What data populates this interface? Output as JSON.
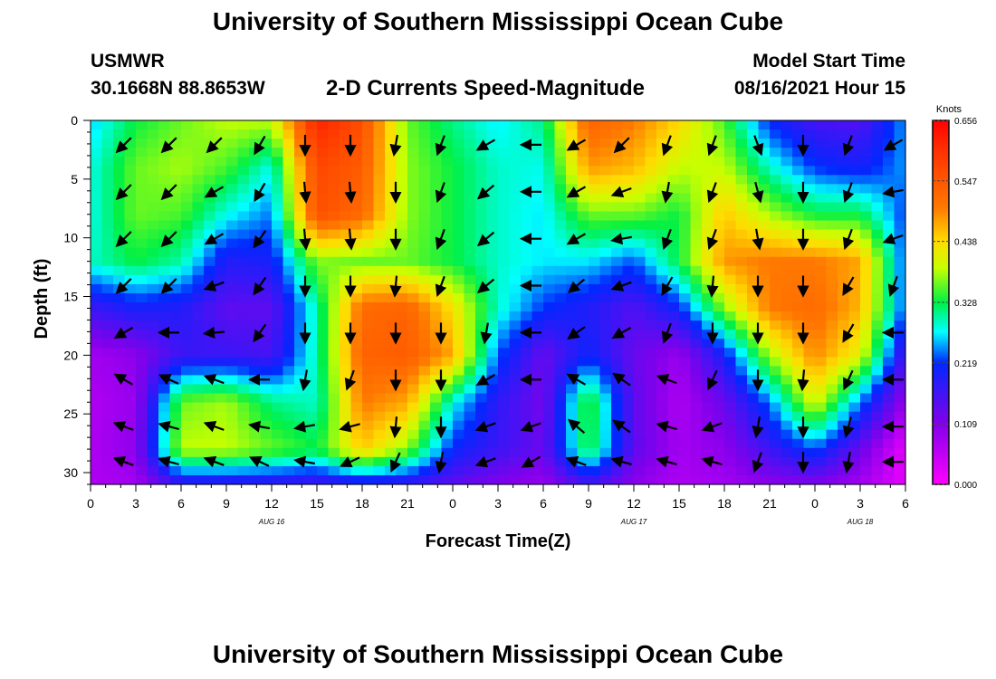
{
  "header": {
    "title": "University of Southern Mississippi Ocean Cube",
    "station": "USMWR",
    "coordinates": "30.1668N  88.8653W",
    "subtitle": "2-D Currents Speed-Magnitude",
    "model_start_label": "Model Start Time",
    "model_start_value": "08/16/2021 Hour 15"
  },
  "footer": {
    "title": "University of Southern Mississippi Ocean Cube"
  },
  "chart_data": {
    "type": "heatmap",
    "title": "2-D Currents Speed-Magnitude",
    "xlabel": "Forecast Time(Z)",
    "ylabel": "Depth (ft)",
    "x_tick_labels": [
      "0",
      "3",
      "6",
      "9",
      "12",
      "15",
      "18",
      "21",
      "0",
      "3",
      "6",
      "9",
      "12",
      "15",
      "18",
      "21",
      "0",
      "3",
      "6"
    ],
    "x_hours": [
      0,
      3,
      6,
      9,
      12,
      15,
      18,
      21,
      24,
      27,
      30,
      33,
      36,
      39,
      42,
      45,
      48,
      51,
      54
    ],
    "date_labels": [
      {
        "label": "AUG  16",
        "hour": 12
      },
      {
        "label": "AUG  17",
        "hour": 36
      },
      {
        "label": "AUG  18",
        "hour": 51
      }
    ],
    "y_ticks": [
      0,
      5,
      10,
      15,
      20,
      25,
      30
    ],
    "ylim": [
      0,
      31
    ],
    "xlim": [
      0,
      54
    ],
    "colorbar": {
      "title": "Knots",
      "tick_labels": [
        "0.656",
        "0.547",
        "0.438",
        "0.328",
        "0.219",
        "0.109",
        "0.000"
      ],
      "tick_values": [
        0.656,
        0.547,
        0.438,
        0.328,
        0.219,
        0.109,
        0.0
      ],
      "range": [
        0,
        0.656
      ]
    },
    "depths": [
      0,
      4,
      8,
      12,
      16,
      20,
      24,
      28,
      31
    ],
    "grid_hours": [
      0,
      3,
      6,
      9,
      12,
      15,
      18,
      21,
      24,
      27,
      30,
      33,
      36,
      39,
      42,
      45,
      48,
      51,
      54
    ],
    "speed_grid": [
      [
        0.26,
        0.33,
        0.36,
        0.39,
        0.39,
        0.62,
        0.56,
        0.36,
        0.31,
        0.27,
        0.31,
        0.53,
        0.5,
        0.44,
        0.35,
        0.21,
        0.16,
        0.15,
        0.25
      ],
      [
        0.28,
        0.36,
        0.38,
        0.35,
        0.28,
        0.57,
        0.54,
        0.37,
        0.33,
        0.29,
        0.28,
        0.48,
        0.46,
        0.39,
        0.39,
        0.29,
        0.22,
        0.2,
        0.25
      ],
      [
        0.28,
        0.36,
        0.35,
        0.28,
        0.24,
        0.56,
        0.52,
        0.37,
        0.33,
        0.29,
        0.27,
        0.36,
        0.36,
        0.33,
        0.45,
        0.38,
        0.33,
        0.33,
        0.22
      ],
      [
        0.29,
        0.33,
        0.3,
        0.19,
        0.2,
        0.37,
        0.36,
        0.36,
        0.33,
        0.29,
        0.27,
        0.27,
        0.23,
        0.33,
        0.48,
        0.5,
        0.5,
        0.47,
        0.22
      ],
      [
        0.17,
        0.2,
        0.19,
        0.14,
        0.14,
        0.3,
        0.52,
        0.53,
        0.43,
        0.29,
        0.22,
        0.19,
        0.15,
        0.21,
        0.37,
        0.5,
        0.52,
        0.46,
        0.22
      ],
      [
        0.08,
        0.1,
        0.17,
        0.17,
        0.16,
        0.3,
        0.53,
        0.54,
        0.47,
        0.23,
        0.13,
        0.21,
        0.13,
        0.09,
        0.2,
        0.38,
        0.49,
        0.41,
        0.15
      ],
      [
        0.07,
        0.09,
        0.36,
        0.38,
        0.31,
        0.29,
        0.5,
        0.47,
        0.28,
        0.18,
        0.12,
        0.35,
        0.14,
        0.07,
        0.13,
        0.24,
        0.41,
        0.24,
        0.09
      ],
      [
        0.07,
        0.1,
        0.39,
        0.39,
        0.36,
        0.33,
        0.45,
        0.37,
        0.21,
        0.17,
        0.13,
        0.34,
        0.14,
        0.08,
        0.1,
        0.17,
        0.23,
        0.13,
        0.02
      ],
      [
        0.07,
        0.08,
        0.17,
        0.17,
        0.17,
        0.16,
        0.18,
        0.17,
        0.14,
        0.11,
        0.09,
        0.16,
        0.1,
        0.07,
        0.08,
        0.1,
        0.11,
        0.08,
        0.02
      ]
    ],
    "vector_depths": [
      2,
      6,
      10,
      14,
      18,
      22,
      26,
      29
    ],
    "vector_hours": [
      3,
      6,
      9,
      12,
      15,
      18,
      21,
      24,
      27,
      30,
      33,
      36,
      39,
      42,
      45,
      48,
      51,
      54
    ],
    "vector_directions_deg": [
      [
        225,
        225,
        225,
        210,
        180,
        180,
        190,
        200,
        240,
        270,
        240,
        225,
        200,
        200,
        160,
        180,
        200,
        240
      ],
      [
        225,
        225,
        240,
        210,
        175,
        175,
        180,
        200,
        230,
        270,
        240,
        250,
        190,
        200,
        165,
        180,
        200,
        260
      ],
      [
        225,
        225,
        240,
        215,
        175,
        175,
        180,
        200,
        230,
        270,
        240,
        260,
        200,
        200,
        170,
        180,
        200,
        250
      ],
      [
        225,
        225,
        250,
        215,
        180,
        180,
        185,
        200,
        230,
        270,
        230,
        250,
        210,
        185,
        180,
        180,
        210,
        200
      ],
      [
        240,
        270,
        265,
        215,
        180,
        180,
        180,
        180,
        190,
        270,
        235,
        240,
        200,
        180,
        180,
        180,
        210,
        270
      ],
      [
        300,
        295,
        290,
        270,
        190,
        200,
        180,
        180,
        240,
        270,
        300,
        305,
        290,
        205,
        180,
        185,
        205,
        270
      ],
      [
        290,
        285,
        290,
        280,
        260,
        255,
        185,
        180,
        250,
        250,
        310,
        305,
        285,
        250,
        190,
        180,
        195,
        270
      ],
      [
        290,
        285,
        290,
        295,
        280,
        245,
        205,
        190,
        250,
        240,
        290,
        285,
        285,
        285,
        200,
        180,
        190,
        270
      ]
    ]
  }
}
